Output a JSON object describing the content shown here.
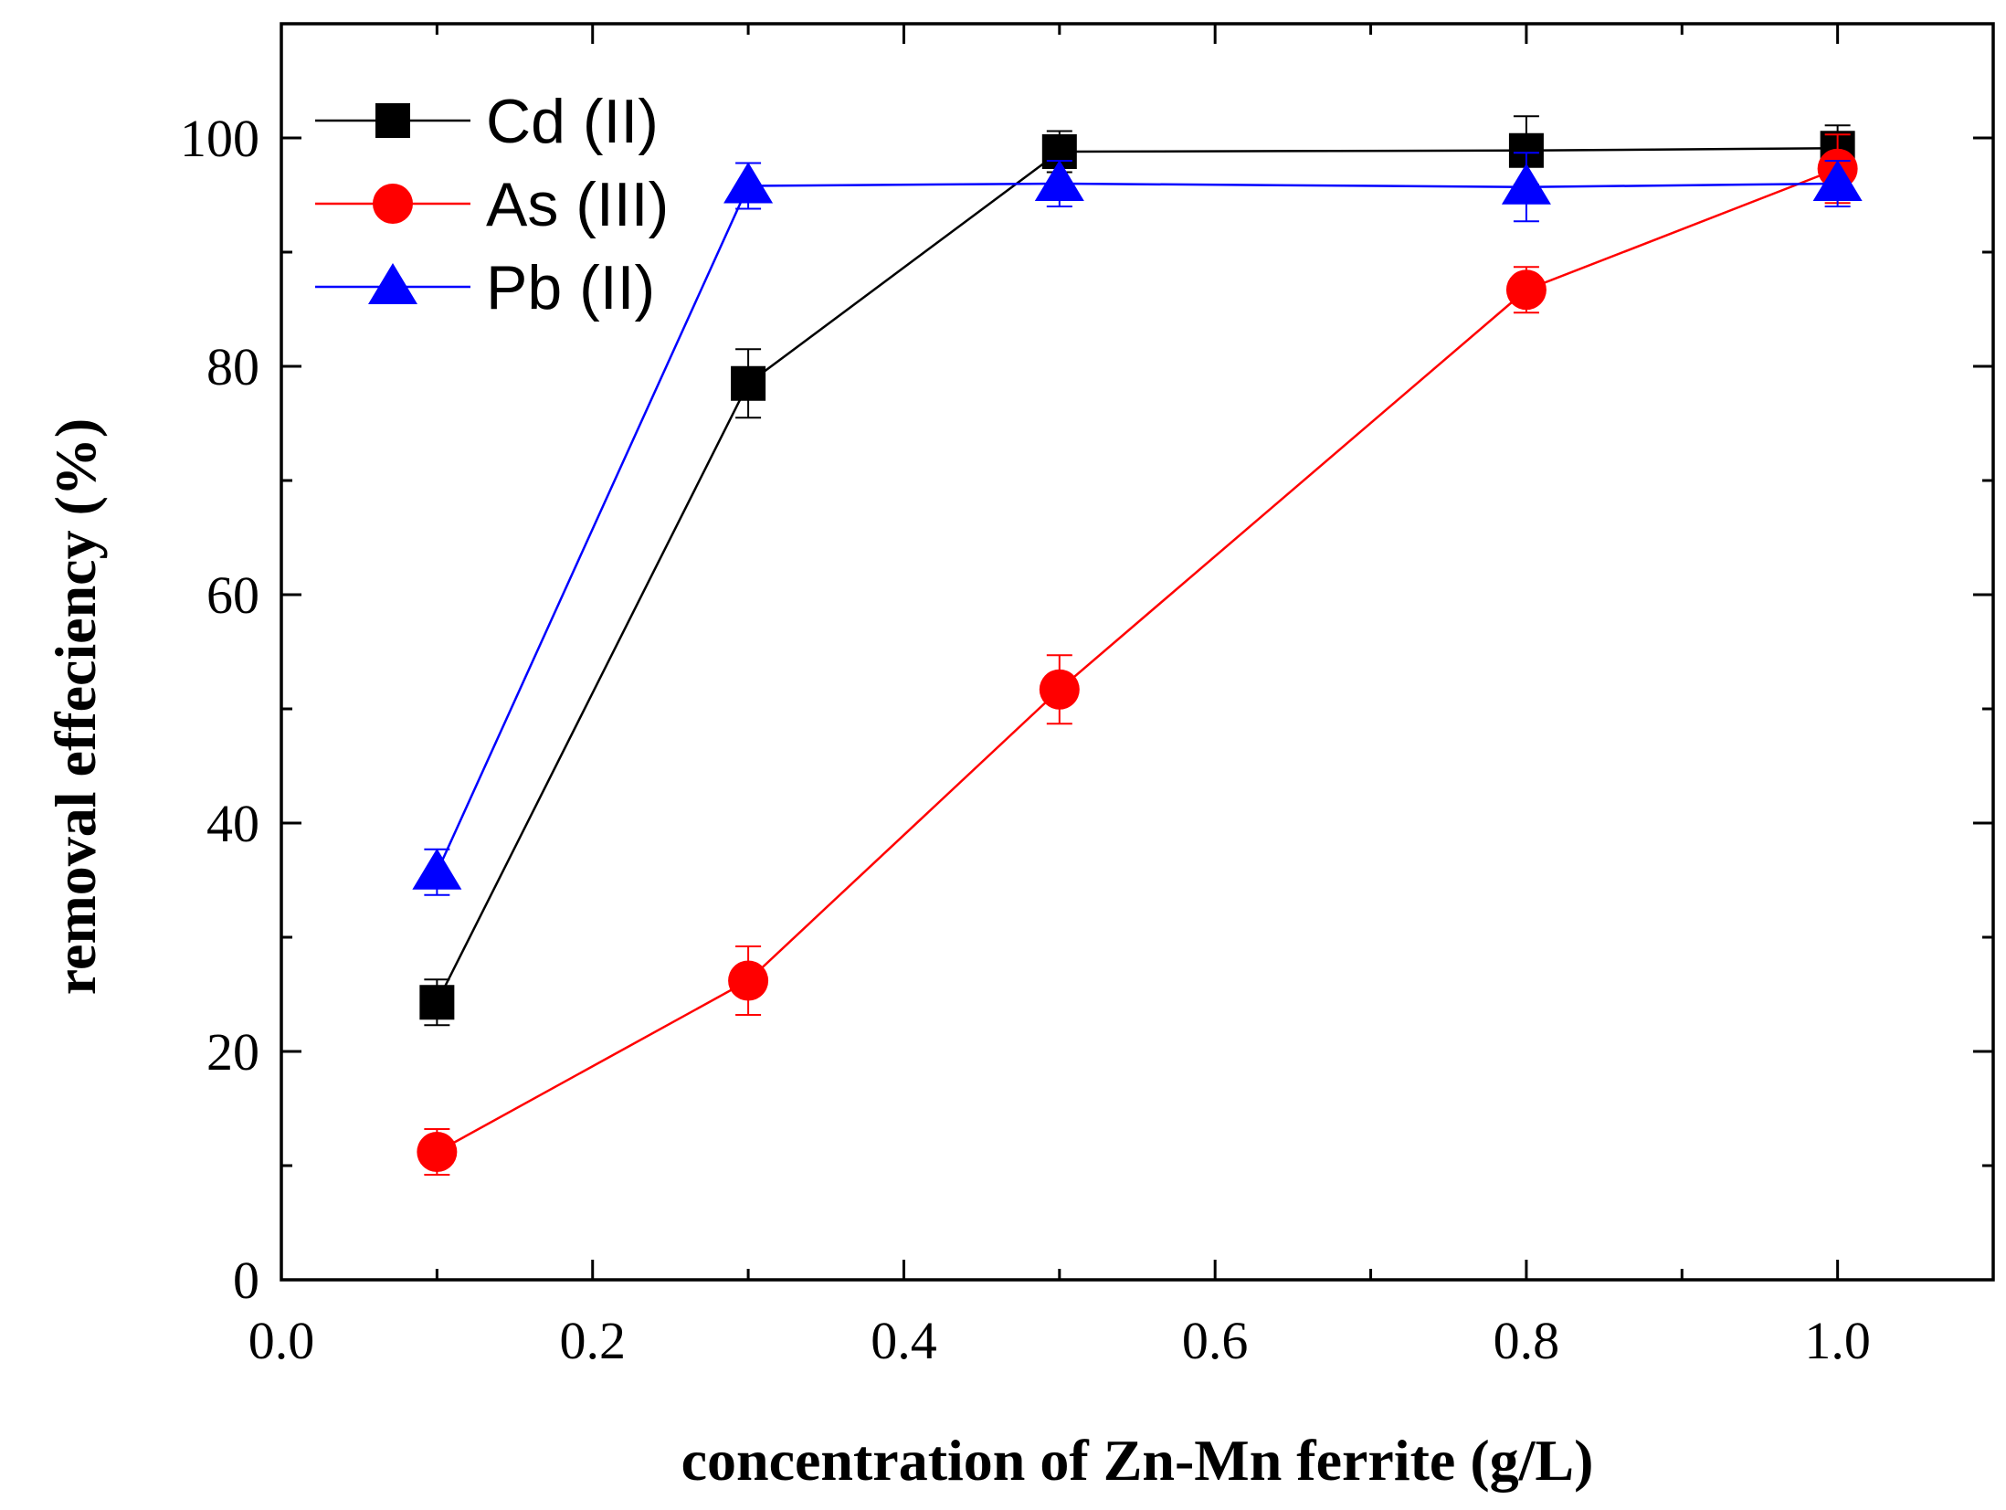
{
  "chart_data": {
    "type": "line",
    "title": "",
    "xlabel": "concentration of Zn-Mn ferrite (g/L)",
    "ylabel": "removal effeciency (%)",
    "xlim": [
      0.0,
      1.1
    ],
    "ylim": [
      0,
      110
    ],
    "x_major_ticks": [
      0.0,
      0.2,
      0.4,
      0.6,
      0.8,
      1.0
    ],
    "x_tick_labels": [
      "0.0",
      "0.2",
      "0.4",
      "0.6",
      "0.8",
      "1.0"
    ],
    "y_major_ticks": [
      0,
      20,
      40,
      60,
      80,
      100
    ],
    "y_tick_labels": [
      "0",
      "20",
      "40",
      "60",
      "80",
      "100"
    ],
    "grid": false,
    "legend_position": "top-left",
    "series": [
      {
        "name": "Cd (II)",
        "color": "#000000",
        "marker": "square",
        "x": [
          0.1,
          0.3,
          0.5,
          0.8,
          1.0
        ],
        "y": [
          24.3,
          78.5,
          98.8,
          98.9,
          99.1
        ],
        "error": [
          2.0,
          3.0,
          1.8,
          3.0,
          2.0
        ]
      },
      {
        "name": "As (III)",
        "color": "#ff0000",
        "marker": "circle",
        "x": [
          0.1,
          0.3,
          0.5,
          0.8,
          1.0
        ],
        "y": [
          11.2,
          26.2,
          51.7,
          86.7,
          97.3
        ],
        "error": [
          2.0,
          3.0,
          3.0,
          2.0,
          3.0
        ]
      },
      {
        "name": "Pb (II)",
        "color": "#0000ff",
        "marker": "triangle",
        "x": [
          0.1,
          0.3,
          0.5,
          0.8,
          1.0
        ],
        "y": [
          35.7,
          95.8,
          96.0,
          95.7,
          96.0
        ],
        "error": [
          2.0,
          2.0,
          2.0,
          3.0,
          2.0
        ]
      }
    ]
  }
}
